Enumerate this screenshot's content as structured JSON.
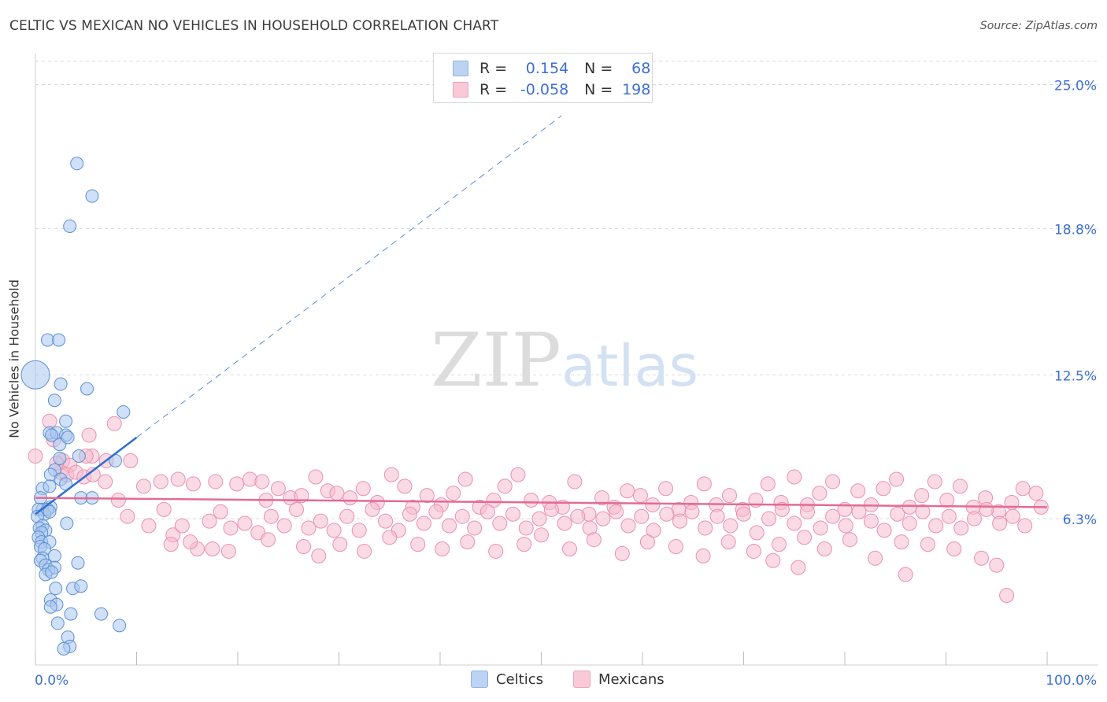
{
  "title": "CELTIC VS MEXICAN NO VEHICLES IN HOUSEHOLD CORRELATION CHART",
  "source": "Source: ZipAtlas.com",
  "watermark": {
    "zip": "ZIP",
    "atlas": "atlas"
  },
  "legend": {
    "r_label": "R =",
    "n_label": "N =",
    "celtics": {
      "r": "0.154",
      "n": "68"
    },
    "mexicans": {
      "r": "-0.058",
      "n": "198"
    }
  },
  "bottom_legend": {
    "celtics": "Celtics",
    "mexicans": "Mexicans"
  },
  "colors": {
    "celtics_fill": "#a9c6ef",
    "celtics_stroke": "#5b8fd6",
    "celtics_line": "#2f6fd0",
    "mexicans_fill": "#f6bccd",
    "mexicans_stroke": "#e991ad",
    "mexicans_line": "#e46a94",
    "tick_label": "#3d6fd1",
    "grid": "#d9d9d9"
  },
  "chart_data": {
    "type": "scatter",
    "title": "CELTIC VS MEXICAN NO VEHICLES IN HOUSEHOLD CORRELATION CHART",
    "xlabel": "",
    "ylabel": "No Vehicles in Household",
    "xlim": [
      0,
      100
    ],
    "ylim": [
      0,
      26
    ],
    "x_tick_labels": [
      "0.0%",
      "100.0%"
    ],
    "y_ticks": [
      6.3,
      12.5,
      18.8,
      25.0
    ],
    "y_tick_labels": [
      "6.3%",
      "12.5%",
      "18.8%",
      "25.0%"
    ],
    "grid": "horizontal dashed",
    "legend_position": "top-center",
    "series": [
      {
        "name": "Celtics",
        "trend": {
          "x": [
            0,
            10
          ],
          "y": [
            6.5,
            9.8
          ]
        },
        "points": [
          [
            4.1,
            21.6
          ],
          [
            5.6,
            20.2
          ],
          [
            3.4,
            18.9
          ],
          [
            1.2,
            14.0
          ],
          [
            2.3,
            14.0
          ],
          [
            0.0,
            12.5
          ],
          [
            2.5,
            12.1
          ],
          [
            5.1,
            11.9
          ],
          [
            1.9,
            11.4
          ],
          [
            3.0,
            10.5
          ],
          [
            1.4,
            10.0
          ],
          [
            2.1,
            10.0
          ],
          [
            3.0,
            9.9
          ],
          [
            8.7,
            10.9
          ],
          [
            2.4,
            9.5
          ],
          [
            3.2,
            9.8
          ],
          [
            1.6,
            9.9
          ],
          [
            4.3,
            9.0
          ],
          [
            7.9,
            8.8
          ],
          [
            2.4,
            8.9
          ],
          [
            1.9,
            8.4
          ],
          [
            1.5,
            8.2
          ],
          [
            2.5,
            8.0
          ],
          [
            3.0,
            7.8
          ],
          [
            0.7,
            7.6
          ],
          [
            1.4,
            7.7
          ],
          [
            0.5,
            7.2
          ],
          [
            4.5,
            7.2
          ],
          [
            5.6,
            7.2
          ],
          [
            1.5,
            6.8
          ],
          [
            0.7,
            6.7
          ],
          [
            0.3,
            6.7
          ],
          [
            0.9,
            6.5
          ],
          [
            0.2,
            6.4
          ],
          [
            1.2,
            6.7
          ],
          [
            1.4,
            6.6
          ],
          [
            0.7,
            6.0
          ],
          [
            0.4,
            5.9
          ],
          [
            1.0,
            5.8
          ],
          [
            3.1,
            6.1
          ],
          [
            0.6,
            5.7
          ],
          [
            0.3,
            5.5
          ],
          [
            0.6,
            5.3
          ],
          [
            1.4,
            5.3
          ],
          [
            0.5,
            5.1
          ],
          [
            0.9,
            5.0
          ],
          [
            1.9,
            4.7
          ],
          [
            0.7,
            4.6
          ],
          [
            0.5,
            4.5
          ],
          [
            4.2,
            4.4
          ],
          [
            1.0,
            4.3
          ],
          [
            1.3,
            4.1
          ],
          [
            1.9,
            4.2
          ],
          [
            1.0,
            3.9
          ],
          [
            1.6,
            4.0
          ],
          [
            2.0,
            3.3
          ],
          [
            3.7,
            3.3
          ],
          [
            4.5,
            3.4
          ],
          [
            1.5,
            2.8
          ],
          [
            2.1,
            2.6
          ],
          [
            1.5,
            2.5
          ],
          [
            3.5,
            2.2
          ],
          [
            6.5,
            2.2
          ],
          [
            2.2,
            1.8
          ],
          [
            8.3,
            1.7
          ],
          [
            3.2,
            1.2
          ],
          [
            3.4,
            0.8
          ],
          [
            2.8,
            0.7
          ]
        ]
      },
      {
        "name": "Mexicans",
        "trend": {
          "x": [
            0,
            100
          ],
          "y": [
            7.2,
            6.8
          ]
        },
        "points": [
          [
            0.0,
            9.0
          ],
          [
            1.4,
            10.5
          ],
          [
            1.8,
            9.7
          ],
          [
            2.7,
            8.8
          ],
          [
            3.4,
            8.6
          ],
          [
            5.3,
            9.9
          ],
          [
            5.6,
            9.0
          ],
          [
            7.0,
            8.8
          ],
          [
            7.8,
            10.4
          ],
          [
            9.4,
            8.8
          ],
          [
            2.5,
            8.3
          ],
          [
            3.1,
            8.2
          ],
          [
            4.0,
            8.3
          ],
          [
            4.8,
            8.1
          ],
          [
            5.7,
            8.2
          ],
          [
            6.9,
            7.9
          ],
          [
            10.7,
            7.7
          ],
          [
            12.4,
            7.9
          ],
          [
            14.1,
            8.0
          ],
          [
            15.6,
            7.8
          ],
          [
            17.8,
            7.9
          ],
          [
            19.9,
            7.8
          ],
          [
            21.2,
            8.0
          ],
          [
            22.4,
            7.9
          ],
          [
            22.8,
            7.1
          ],
          [
            24.0,
            7.6
          ],
          [
            25.2,
            7.2
          ],
          [
            26.3,
            7.3
          ],
          [
            27.7,
            8.1
          ],
          [
            28.9,
            7.5
          ],
          [
            29.8,
            7.4
          ],
          [
            31.1,
            7.2
          ],
          [
            32.4,
            7.6
          ],
          [
            33.8,
            7.0
          ],
          [
            35.2,
            8.2
          ],
          [
            36.5,
            7.7
          ],
          [
            37.3,
            6.8
          ],
          [
            38.7,
            7.3
          ],
          [
            40.1,
            6.9
          ],
          [
            41.3,
            7.4
          ],
          [
            42.5,
            8.0
          ],
          [
            43.9,
            6.8
          ],
          [
            45.3,
            7.1
          ],
          [
            46.4,
            7.7
          ],
          [
            47.7,
            8.2
          ],
          [
            49.0,
            7.1
          ],
          [
            50.8,
            7.0
          ],
          [
            52.1,
            6.8
          ],
          [
            53.3,
            7.9
          ],
          [
            54.7,
            6.5
          ],
          [
            56.0,
            7.2
          ],
          [
            57.2,
            6.8
          ],
          [
            58.5,
            7.5
          ],
          [
            59.8,
            7.3
          ],
          [
            61.0,
            6.9
          ],
          [
            62.3,
            7.6
          ],
          [
            63.6,
            6.7
          ],
          [
            64.8,
            7.0
          ],
          [
            66.1,
            7.8
          ],
          [
            67.3,
            6.9
          ],
          [
            68.6,
            7.3
          ],
          [
            69.9,
            6.7
          ],
          [
            71.2,
            7.1
          ],
          [
            72.4,
            7.8
          ],
          [
            73.7,
            7.0
          ],
          [
            75.0,
            8.1
          ],
          [
            76.3,
            6.9
          ],
          [
            77.5,
            7.4
          ],
          [
            78.8,
            7.9
          ],
          [
            80.0,
            6.7
          ],
          [
            81.3,
            7.5
          ],
          [
            82.6,
            6.9
          ],
          [
            83.8,
            7.6
          ],
          [
            85.1,
            8.0
          ],
          [
            86.4,
            6.8
          ],
          [
            87.6,
            7.3
          ],
          [
            88.9,
            7.9
          ],
          [
            90.1,
            7.1
          ],
          [
            91.4,
            7.7
          ],
          [
            92.7,
            6.8
          ],
          [
            93.9,
            7.2
          ],
          [
            95.2,
            6.6
          ],
          [
            96.5,
            7.0
          ],
          [
            97.6,
            7.6
          ],
          [
            98.9,
            7.4
          ],
          [
            99.4,
            6.8
          ],
          [
            2.1,
            8.7
          ],
          [
            5.0,
            9.0
          ],
          [
            8.2,
            7.1
          ],
          [
            9.1,
            6.4
          ],
          [
            11.2,
            6.0
          ],
          [
            12.7,
            6.7
          ],
          [
            13.6,
            5.6
          ],
          [
            14.5,
            6.0
          ],
          [
            16.0,
            5.0
          ],
          [
            17.2,
            6.2
          ],
          [
            18.3,
            6.6
          ],
          [
            19.3,
            5.9
          ],
          [
            20.7,
            6.1
          ],
          [
            22.0,
            5.7
          ],
          [
            23.3,
            6.4
          ],
          [
            24.6,
            6.0
          ],
          [
            25.8,
            6.7
          ],
          [
            27.0,
            5.9
          ],
          [
            28.2,
            6.2
          ],
          [
            29.5,
            5.8
          ],
          [
            30.8,
            6.4
          ],
          [
            32.0,
            5.8
          ],
          [
            33.3,
            6.7
          ],
          [
            34.6,
            6.2
          ],
          [
            35.9,
            5.8
          ],
          [
            37.0,
            6.5
          ],
          [
            38.4,
            6.1
          ],
          [
            39.6,
            6.6
          ],
          [
            40.9,
            6.0
          ],
          [
            42.2,
            6.4
          ],
          [
            43.4,
            5.9
          ],
          [
            44.7,
            6.6
          ],
          [
            45.9,
            6.1
          ],
          [
            47.2,
            6.5
          ],
          [
            48.5,
            5.9
          ],
          [
            49.8,
            6.3
          ],
          [
            51.0,
            6.7
          ],
          [
            52.3,
            6.1
          ],
          [
            53.6,
            6.4
          ],
          [
            54.8,
            5.9
          ],
          [
            56.1,
            6.3
          ],
          [
            57.4,
            6.6
          ],
          [
            58.6,
            6.0
          ],
          [
            59.9,
            6.4
          ],
          [
            61.1,
            5.8
          ],
          [
            62.4,
            6.5
          ],
          [
            63.7,
            6.2
          ],
          [
            64.9,
            6.6
          ],
          [
            66.2,
            5.9
          ],
          [
            67.4,
            6.4
          ],
          [
            68.7,
            6.0
          ],
          [
            70.0,
            6.5
          ],
          [
            71.3,
            5.7
          ],
          [
            72.5,
            6.3
          ],
          [
            73.8,
            6.7
          ],
          [
            75.0,
            6.1
          ],
          [
            76.3,
            6.6
          ],
          [
            77.6,
            5.9
          ],
          [
            78.8,
            6.4
          ],
          [
            80.1,
            6.0
          ],
          [
            81.4,
            6.6
          ],
          [
            82.6,
            6.2
          ],
          [
            83.9,
            5.8
          ],
          [
            85.2,
            6.5
          ],
          [
            86.4,
            6.1
          ],
          [
            87.7,
            6.6
          ],
          [
            89.0,
            6.0
          ],
          [
            90.3,
            6.4
          ],
          [
            91.5,
            5.9
          ],
          [
            92.8,
            6.3
          ],
          [
            94.0,
            6.7
          ],
          [
            95.3,
            6.1
          ],
          [
            96.6,
            6.4
          ],
          [
            97.8,
            6.0
          ],
          [
            13.4,
            5.2
          ],
          [
            15.3,
            5.3
          ],
          [
            17.5,
            5.0
          ],
          [
            19.1,
            4.9
          ],
          [
            23.0,
            5.4
          ],
          [
            26.5,
            5.1
          ],
          [
            28.0,
            4.7
          ],
          [
            30.1,
            5.2
          ],
          [
            32.5,
            4.9
          ],
          [
            35.0,
            5.5
          ],
          [
            37.8,
            5.2
          ],
          [
            40.2,
            5.0
          ],
          [
            42.7,
            5.3
          ],
          [
            45.5,
            4.9
          ],
          [
            48.3,
            5.2
          ],
          [
            50.0,
            5.6
          ],
          [
            52.8,
            5.0
          ],
          [
            55.2,
            5.4
          ],
          [
            58.0,
            4.8
          ],
          [
            60.5,
            5.3
          ],
          [
            63.3,
            5.1
          ],
          [
            66.0,
            4.7
          ],
          [
            68.5,
            5.3
          ],
          [
            71.0,
            4.9
          ],
          [
            73.5,
            5.2
          ],
          [
            76.0,
            5.5
          ],
          [
            78.0,
            5.0
          ],
          [
            80.5,
            5.4
          ],
          [
            83.0,
            4.6
          ],
          [
            85.6,
            5.3
          ],
          [
            88.2,
            5.2
          ],
          [
            90.8,
            5.0
          ],
          [
            93.5,
            4.6
          ],
          [
            95.0,
            4.3
          ],
          [
            72.9,
            4.5
          ],
          [
            75.4,
            4.2
          ],
          [
            86.0,
            3.9
          ],
          [
            96.0,
            3.0
          ]
        ]
      }
    ]
  }
}
